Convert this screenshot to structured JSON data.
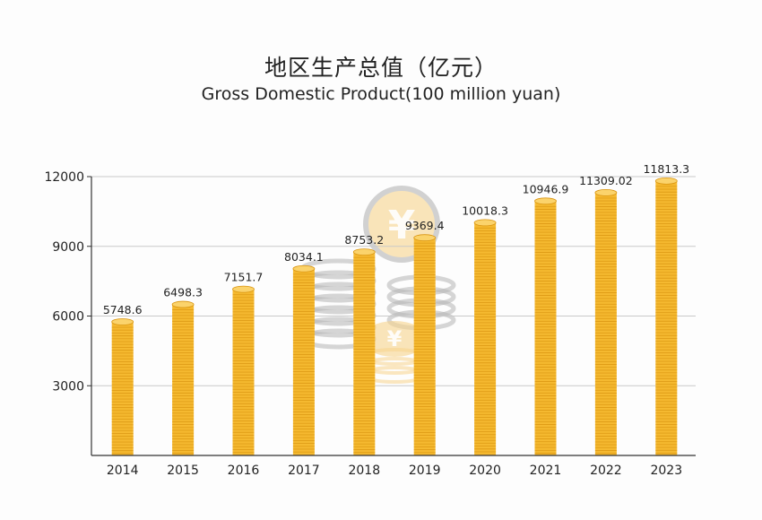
{
  "title": "地区生产总值（亿元）",
  "subtitle": "Gross Domestic Product(100 million yuan)",
  "colors": {
    "bar": "#f5b930",
    "bar_dark": "#d9940f",
    "bar_light": "#fbd36b",
    "grid": "#c9c9c9",
    "axis": "#333333",
    "watermark_gray": "#b5b5b5",
    "watermark_gold": "#f7d48c"
  },
  "chart_data": {
    "type": "bar",
    "title": "地区生产总值（亿元）",
    "subtitle": "Gross Domestic Product(100 million yuan)",
    "categories": [
      "2014",
      "2015",
      "2016",
      "2017",
      "2018",
      "2019",
      "2020",
      "2021",
      "2022",
      "2023"
    ],
    "values": [
      5748.6,
      6498.3,
      7151.7,
      8034.1,
      8753.2,
      9369.4,
      10018.3,
      10946.9,
      11309.02,
      11813.3
    ],
    "value_labels": [
      "5748.6",
      "6498.3",
      "7151.7",
      "8034.1",
      "8753.2",
      "9369.4",
      "10018.3",
      "10946.9",
      "11309.02",
      "11813.3"
    ],
    "yticks": [
      3000,
      6000,
      9000,
      12000
    ],
    "ylim": [
      0,
      12000
    ],
    "grid": true,
    "legend": "none"
  }
}
